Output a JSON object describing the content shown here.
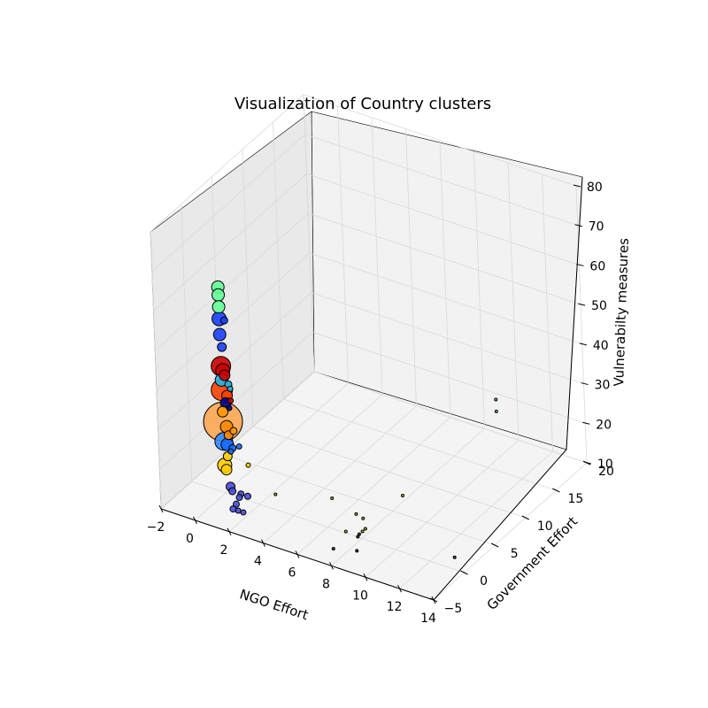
{
  "chart_data": {
    "type": "scatter",
    "projection": "3d",
    "title": "Visualization of Country clusters",
    "xlabel": "NGO Effort",
    "ylabel": "Government Effort",
    "zlabel": "Vulnerabilty measures",
    "xlim": [
      -2,
      14
    ],
    "ylim": [
      -5,
      20
    ],
    "zlim": [
      10,
      80
    ],
    "x_ticks": [
      "−2",
      "0",
      "2",
      "4",
      "6",
      "8",
      "10",
      "12",
      "14"
    ],
    "y_ticks": [
      "−5",
      "0",
      "5",
      "10",
      "15",
      "20"
    ],
    "z_ticks": [
      "10",
      "20",
      "30",
      "40",
      "50",
      "60",
      "70",
      "80"
    ],
    "grid": true,
    "points": [
      {
        "x": 0.0,
        "y": 0.0,
        "z": 62,
        "size": 14,
        "color": "#66ff99"
      },
      {
        "x": 0.0,
        "y": 0.0,
        "z": 60,
        "size": 14,
        "color": "#66ff99"
      },
      {
        "x": 0.0,
        "y": 0.0,
        "z": 57,
        "size": 14,
        "color": "#66ff99"
      },
      {
        "x": 0.0,
        "y": 0.0,
        "z": 54,
        "size": 16,
        "color": "#1a40ff"
      },
      {
        "x": 0.3,
        "y": 0.0,
        "z": 54,
        "size": 8,
        "color": "#1a40ff"
      },
      {
        "x": 0.0,
        "y": 0.0,
        "z": 50,
        "size": 14,
        "color": "#1a40ff"
      },
      {
        "x": 0.1,
        "y": 0.0,
        "z": 47,
        "size": 10,
        "color": "#1a40ff"
      },
      {
        "x": 0.0,
        "y": 0.0,
        "z": 42,
        "size": 22,
        "color": "#cc0000"
      },
      {
        "x": 0.1,
        "y": 0.0,
        "z": 41,
        "size": 16,
        "color": "#cc0000"
      },
      {
        "x": 0.2,
        "y": 0.0,
        "z": 40,
        "size": 12,
        "color": "#cc0000"
      },
      {
        "x": 0.0,
        "y": 0.0,
        "z": 38.5,
        "size": 14,
        "color": "#22b5e8"
      },
      {
        "x": 0.4,
        "y": 0.0,
        "z": 38,
        "size": 8,
        "color": "#22b5e8"
      },
      {
        "x": 0.5,
        "y": 0.0,
        "z": 37,
        "size": 6,
        "color": "#22b5e8"
      },
      {
        "x": 0.0,
        "y": 0.0,
        "z": 36,
        "size": 24,
        "color": "#ff4000"
      },
      {
        "x": 0.3,
        "y": 0.0,
        "z": 35,
        "size": 12,
        "color": "#ff4000"
      },
      {
        "x": 0.5,
        "y": 0.0,
        "z": 34,
        "size": 6,
        "color": "#cc0000"
      },
      {
        "x": 0.2,
        "y": 0.0,
        "z": 33,
        "size": 12,
        "color": "#00008b"
      },
      {
        "x": 0.4,
        "y": 0.0,
        "z": 32,
        "size": 6,
        "color": "#00008b"
      },
      {
        "x": 0.0,
        "y": 0.0,
        "z": 30.5,
        "size": 12,
        "color": "#ff9900"
      },
      {
        "x": 0.0,
        "y": 0.0,
        "z": 28,
        "size": 44,
        "color": "#ff9933"
      },
      {
        "x": 0.2,
        "y": 0.0,
        "z": 27,
        "size": 14,
        "color": "#ff8800"
      },
      {
        "x": 0.6,
        "y": 0.0,
        "z": 26.5,
        "size": 8,
        "color": "#ff9900"
      },
      {
        "x": 0.3,
        "y": 0.0,
        "z": 25,
        "size": 10,
        "color": "#ff8800"
      },
      {
        "x": 0.0,
        "y": 0.0,
        "z": 23,
        "size": 20,
        "color": "#3388ff"
      },
      {
        "x": 0.2,
        "y": 0.0,
        "z": 22.5,
        "size": 14,
        "color": "#1a6aff"
      },
      {
        "x": 0.5,
        "y": 0.0,
        "z": 22,
        "size": 8,
        "color": "#1a6aff"
      },
      {
        "x": 0.9,
        "y": 0.0,
        "z": 23,
        "size": 6,
        "color": "#1a6aff"
      },
      {
        "x": 0.4,
        "y": 0.0,
        "z": 21,
        "size": 6,
        "color": "#1a6aff"
      },
      {
        "x": 0.2,
        "y": 0.0,
        "z": 19.5,
        "size": 10,
        "color": "#ffcc00"
      },
      {
        "x": 1.4,
        "y": 0.0,
        "z": 19,
        "size": 5,
        "color": "#ffcc00"
      },
      {
        "x": 0.0,
        "y": 0.0,
        "z": 17,
        "size": 16,
        "color": "#ffcc00"
      },
      {
        "x": 0.1,
        "y": 0.0,
        "z": 16,
        "size": 12,
        "color": "#ffcc00"
      },
      {
        "x": 0.3,
        "y": 0.0,
        "z": 12,
        "size": 10,
        "color": "#4a4ad8"
      },
      {
        "x": 0.4,
        "y": 0.0,
        "z": 11,
        "size": 8,
        "color": "#4a4ad8"
      },
      {
        "x": 0.9,
        "y": 0.0,
        "z": 11,
        "size": 7,
        "color": "#4a4ad8"
      },
      {
        "x": 0.8,
        "y": 0.0,
        "z": 10,
        "size": 7,
        "color": "#4a4ad8"
      },
      {
        "x": 1.3,
        "y": 0.0,
        "z": 11,
        "size": 7,
        "color": "#4a4ad8"
      },
      {
        "x": 0.6,
        "y": 0.0,
        "z": 8,
        "size": 7,
        "color": "#4a4ad8"
      },
      {
        "x": 0.4,
        "y": 0.0,
        "z": 6.5,
        "size": 7,
        "color": "#4a4ad8"
      },
      {
        "x": 1.0,
        "y": 0.0,
        "z": 6.5,
        "size": 6,
        "color": "#4a4ad8"
      },
      {
        "x": 0.7,
        "y": 0.0,
        "z": 6.5,
        "size": 6,
        "color": "#4a4ad8"
      },
      {
        "x": 2.2,
        "y": 2.0,
        "z": 10,
        "size": 3,
        "color": "#b5b520"
      },
      {
        "x": 4.8,
        "y": 4.0,
        "z": 10,
        "size": 3,
        "color": "#b5b520"
      },
      {
        "x": 7.5,
        "y": 8.0,
        "z": 9,
        "size": 3,
        "color": "#b5b520"
      },
      {
        "x": 6.2,
        "y": 4.0,
        "z": 8,
        "size": 3,
        "color": "#b5b520"
      },
      {
        "x": 6.6,
        "y": 4.0,
        "z": 7.5,
        "size": 3,
        "color": "#b5b520"
      },
      {
        "x": 6.3,
        "y": 2.0,
        "z": 6.5,
        "size": 3,
        "color": "#b5b520"
      },
      {
        "x": 6.9,
        "y": 3.5,
        "z": 6,
        "size": 3,
        "color": "#b5b520"
      },
      {
        "x": 7.1,
        "y": 2.5,
        "z": 7,
        "size": 3,
        "color": "#b5b520"
      },
      {
        "x": 6.9,
        "y": 2.5,
        "z": 6,
        "size": 3,
        "color": "#333333"
      },
      {
        "x": 7.0,
        "y": 2.0,
        "z": 6.2,
        "size": 3,
        "color": "#333333"
      },
      {
        "x": 5.9,
        "y": 1.0,
        "z": 3,
        "size": 3,
        "color": "#333333"
      },
      {
        "x": 7.1,
        "y": 1.5,
        "z": 3.5,
        "size": 3,
        "color": "#333333"
      },
      {
        "x": 11.2,
        "y": 6.0,
        "z": 1.5,
        "size": 3,
        "color": "#333333"
      },
      {
        "x": 11.0,
        "y": 14.0,
        "z": 30,
        "size": 3,
        "color": "#6fa8a8"
      },
      {
        "x": 11.0,
        "y": 14.0,
        "z": 27,
        "size": 3,
        "color": "#6fa8a8"
      }
    ]
  }
}
